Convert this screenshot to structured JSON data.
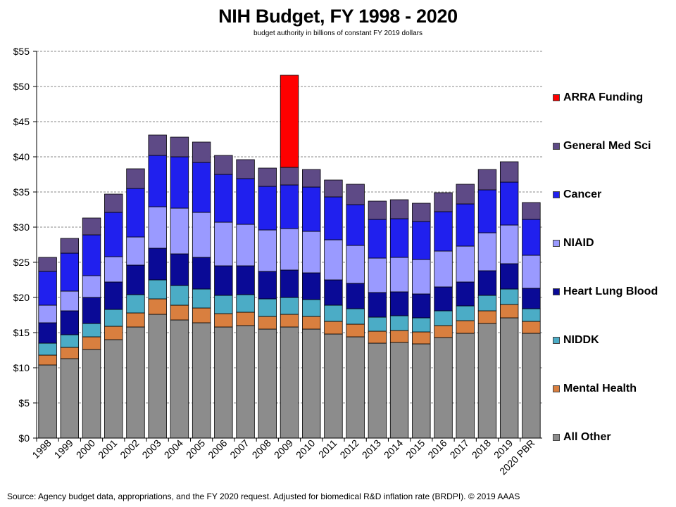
{
  "chart_data": {
    "type": "bar",
    "stacked": true,
    "title": "NIH Budget, FY 1998 - 2020",
    "subtitle": "budget authority in billions of constant FY 2019 dollars",
    "source": "Source: Agency budget data, appropriations, and the FY 2020 request. Adjusted for biomedical R&D inflation rate (BRDPI). © 2019 AAAS",
    "ylim": [
      0,
      55
    ],
    "yticks": [
      0,
      5,
      10,
      15,
      20,
      25,
      30,
      35,
      40,
      45,
      50,
      55
    ],
    "ytick_labels": [
      "$0",
      "$5",
      "$10",
      "$15",
      "$20",
      "$25",
      "$30",
      "$35",
      "$40",
      "$45",
      "$50",
      "$55"
    ],
    "grid": "dashed horizontal",
    "legend_position": "right",
    "categories": [
      "1998",
      "1999",
      "2000",
      "2001",
      "2002",
      "2003",
      "2004",
      "2005",
      "2006",
      "2007",
      "2008",
      "2009",
      "2010",
      "2011",
      "2012",
      "2013",
      "2014",
      "2015",
      "2016",
      "2017",
      "2018",
      "2019",
      "2020 PBR"
    ],
    "series": [
      {
        "name": "All Other",
        "color": "#8c8c8c",
        "values": [
          10.4,
          11.3,
          12.6,
          14.0,
          15.8,
          17.6,
          16.8,
          16.4,
          15.8,
          16.0,
          15.5,
          15.8,
          15.5,
          14.8,
          14.4,
          13.5,
          13.6,
          13.4,
          14.3,
          14.9,
          16.3,
          17.1,
          14.9
        ]
      },
      {
        "name": "Mental Health",
        "color": "#d97f3f",
        "values": [
          1.4,
          1.6,
          1.8,
          1.9,
          2.0,
          2.2,
          2.1,
          2.1,
          1.9,
          1.9,
          1.8,
          1.8,
          1.8,
          1.8,
          1.8,
          1.7,
          1.7,
          1.7,
          1.7,
          1.8,
          1.8,
          1.9,
          1.7
        ]
      },
      {
        "name": "NIDDK",
        "color": "#4bacc6",
        "values": [
          1.7,
          1.8,
          1.9,
          2.4,
          2.6,
          2.7,
          2.8,
          2.7,
          2.6,
          2.5,
          2.5,
          2.4,
          2.4,
          2.3,
          2.2,
          2.0,
          2.1,
          2.0,
          2.1,
          2.1,
          2.2,
          2.2,
          1.8
        ]
      },
      {
        "name": "Heart Lung Blood",
        "color": "#0a0a96",
        "values": [
          2.9,
          3.4,
          3.7,
          3.9,
          4.2,
          4.5,
          4.5,
          4.5,
          4.2,
          4.1,
          3.9,
          3.9,
          3.8,
          3.6,
          3.6,
          3.5,
          3.4,
          3.4,
          3.4,
          3.4,
          3.5,
          3.6,
          2.9
        ]
      },
      {
        "name": "NIAID",
        "color": "#9a9aff",
        "values": [
          2.5,
          2.8,
          3.1,
          3.6,
          4.0,
          5.9,
          6.5,
          6.4,
          6.2,
          5.9,
          5.9,
          5.9,
          5.9,
          5.7,
          5.4,
          4.9,
          4.9,
          4.9,
          5.1,
          5.1,
          5.4,
          5.5,
          4.7
        ]
      },
      {
        "name": "Cancer",
        "color": "#2020ee",
        "values": [
          4.8,
          5.4,
          5.8,
          6.3,
          6.9,
          7.3,
          7.3,
          7.1,
          6.8,
          6.5,
          6.2,
          6.2,
          6.3,
          6.1,
          5.8,
          5.5,
          5.5,
          5.4,
          5.6,
          6.0,
          6.1,
          6.1,
          5.1
        ]
      },
      {
        "name": "General Med Sci",
        "color": "#5e4a86",
        "values": [
          2.0,
          2.1,
          2.4,
          2.6,
          2.8,
          2.9,
          2.8,
          2.9,
          2.7,
          2.7,
          2.6,
          2.5,
          2.5,
          2.4,
          2.9,
          2.6,
          2.7,
          2.6,
          2.7,
          2.8,
          2.9,
          2.9,
          2.4
        ]
      },
      {
        "name": "ARRA Funding",
        "color": "#ff0000",
        "values": [
          0,
          0,
          0,
          0,
          0,
          0,
          0,
          0,
          0,
          0,
          0,
          13.1,
          0,
          0,
          0,
          0,
          0,
          0,
          0,
          0,
          0,
          0,
          0
        ]
      }
    ],
    "legend_order": [
      "ARRA Funding",
      "General Med Sci",
      "Cancer",
      "NIAID",
      "Heart Lung Blood",
      "NIDDK",
      "Mental Health",
      "All Other"
    ]
  }
}
